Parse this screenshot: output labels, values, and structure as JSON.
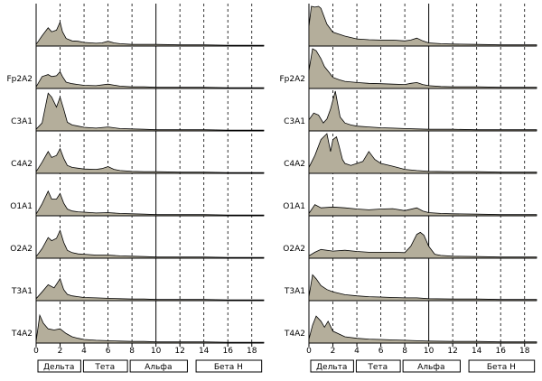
{
  "chart_data": [
    {
      "type": "area",
      "title": "",
      "xlabel": "",
      "ylabel": "",
      "xlim": [
        0,
        19
      ],
      "ylim": [
        0,
        1
      ],
      "grid": true,
      "legend": "none",
      "x_ticks": [
        0,
        2,
        4,
        6,
        8,
        10,
        12,
        14,
        16,
        18
      ],
      "tick_labels": [
        "0",
        "2",
        "4",
        "6",
        "8",
        "10",
        "12",
        "14",
        "16",
        "18"
      ],
      "bands": [
        {
          "name": "Дельта",
          "range": [
            0,
            3.8
          ]
        },
        {
          "name": "Тета",
          "range": [
            3.8,
            7.7
          ]
        },
        {
          "name": "Альфа",
          "range": [
            7.7,
            12.7
          ]
        },
        {
          "name": "Бета Н",
          "range": [
            13.2,
            18.9
          ]
        }
      ],
      "series": [
        {
          "name": "",
          "x": [
            0,
            0.5,
            1,
            1.3,
            1.7,
            2,
            2.2,
            2.5,
            3,
            3.5,
            4,
            5,
            5.5,
            6,
            6.5,
            7,
            8,
            9,
            10,
            12,
            14,
            16,
            18,
            19
          ],
          "values": [
            0.04,
            0.26,
            0.46,
            0.36,
            0.4,
            0.6,
            0.36,
            0.19,
            0.13,
            0.12,
            0.09,
            0.07,
            0.08,
            0.12,
            0.08,
            0.06,
            0.04,
            0.04,
            0.04,
            0.03,
            0.03,
            0.02,
            0.02,
            0.02
          ]
        },
        {
          "name": "Fp2A2",
          "x": [
            0,
            0.5,
            1,
            1.3,
            1.7,
            2,
            2.2,
            2.5,
            3,
            3.5,
            4,
            5,
            6,
            7,
            8,
            9,
            10,
            12,
            14,
            16,
            18,
            19
          ],
          "values": [
            0.04,
            0.3,
            0.35,
            0.3,
            0.32,
            0.42,
            0.3,
            0.16,
            0.12,
            0.1,
            0.08,
            0.07,
            0.11,
            0.06,
            0.04,
            0.04,
            0.03,
            0.03,
            0.03,
            0.02,
            0.02,
            0.02
          ]
        },
        {
          "name": "C3A1",
          "x": [
            0,
            0.5,
            1,
            1.3,
            1.7,
            2,
            2.3,
            2.6,
            3,
            3.5,
            4,
            5,
            6,
            7,
            8,
            9,
            10,
            12,
            14,
            16,
            18,
            19
          ],
          "values": [
            0.04,
            0.2,
            0.95,
            0.85,
            0.6,
            0.85,
            0.55,
            0.22,
            0.15,
            0.12,
            0.09,
            0.07,
            0.1,
            0.06,
            0.05,
            0.04,
            0.03,
            0.03,
            0.03,
            0.02,
            0.02,
            0.02
          ]
        },
        {
          "name": "C4A2",
          "x": [
            0,
            0.5,
            1,
            1.3,
            1.7,
            2,
            2.3,
            2.6,
            3,
            3.5,
            4,
            5,
            5.5,
            6,
            6.5,
            7,
            8,
            9,
            10,
            12,
            14,
            16,
            18,
            19
          ],
          "values": [
            0.04,
            0.28,
            0.55,
            0.4,
            0.45,
            0.62,
            0.38,
            0.2,
            0.15,
            0.13,
            0.11,
            0.1,
            0.12,
            0.17,
            0.1,
            0.07,
            0.05,
            0.04,
            0.04,
            0.03,
            0.03,
            0.02,
            0.02,
            0.02
          ]
        },
        {
          "name": "O1A1",
          "x": [
            0,
            0.5,
            1,
            1.3,
            1.7,
            2,
            2.3,
            2.6,
            3,
            3.5,
            4,
            5,
            6,
            7,
            8,
            9,
            10,
            12,
            14,
            16,
            18,
            19
          ],
          "values": [
            0.04,
            0.3,
            0.62,
            0.42,
            0.42,
            0.56,
            0.32,
            0.17,
            0.12,
            0.1,
            0.09,
            0.07,
            0.08,
            0.06,
            0.05,
            0.04,
            0.03,
            0.03,
            0.03,
            0.02,
            0.02,
            0.02
          ]
        },
        {
          "name": "O2A2",
          "x": [
            0,
            0.5,
            1,
            1.3,
            1.7,
            2,
            2.3,
            2.6,
            3,
            3.5,
            4,
            5,
            6,
            7,
            8,
            9,
            10,
            12,
            14,
            16,
            18,
            19
          ],
          "values": [
            0.04,
            0.24,
            0.52,
            0.44,
            0.5,
            0.7,
            0.4,
            0.2,
            0.14,
            0.11,
            0.1,
            0.08,
            0.08,
            0.06,
            0.05,
            0.04,
            0.03,
            0.03,
            0.03,
            0.02,
            0.02,
            0.02
          ]
        },
        {
          "name": "T3A1",
          "x": [
            0,
            0.5,
            1,
            1.5,
            2,
            2.3,
            2.6,
            3,
            3.5,
            4,
            5,
            6,
            7,
            8,
            9,
            10,
            12,
            14,
            16,
            18,
            19
          ],
          "values": [
            0.05,
            0.22,
            0.4,
            0.32,
            0.55,
            0.28,
            0.16,
            0.12,
            0.1,
            0.08,
            0.07,
            0.06,
            0.05,
            0.04,
            0.04,
            0.03,
            0.03,
            0.03,
            0.02,
            0.02,
            0.02
          ]
        },
        {
          "name": "T4A2",
          "x": [
            0,
            0.3,
            0.6,
            1,
            1.5,
            2,
            2.5,
            3,
            3.5,
            4,
            5,
            6,
            7,
            8,
            9,
            10,
            12,
            14,
            16,
            18,
            19
          ],
          "values": [
            0.05,
            0.7,
            0.5,
            0.36,
            0.33,
            0.36,
            0.24,
            0.16,
            0.12,
            0.09,
            0.07,
            0.06,
            0.05,
            0.04,
            0.04,
            0.03,
            0.03,
            0.03,
            0.02,
            0.02,
            0.02
          ]
        }
      ]
    },
    {
      "type": "area",
      "title": "",
      "xlabel": "",
      "ylabel": "",
      "xlim": [
        0,
        19
      ],
      "ylim": [
        0,
        1
      ],
      "grid": true,
      "legend": "none",
      "x_ticks": [
        0,
        2,
        4,
        6,
        8,
        10,
        12,
        14,
        16,
        18
      ],
      "tick_labels": [
        "0",
        "2",
        "4",
        "6",
        "8",
        "10",
        "12",
        "14",
        "16",
        "18"
      ],
      "bands": [
        {
          "name": "Дельта",
          "range": [
            0,
            3.8
          ]
        },
        {
          "name": "Тета",
          "range": [
            3.8,
            7.7
          ]
        },
        {
          "name": "Альфа",
          "range": [
            7.7,
            12.7
          ]
        },
        {
          "name": "Бета Н",
          "range": [
            13.2,
            18.9
          ]
        }
      ],
      "series": [
        {
          "name": "",
          "x": [
            0,
            0.2,
            0.5,
            0.8,
            1,
            1.5,
            2,
            3,
            4,
            5,
            6,
            7,
            8,
            8.5,
            9,
            9.5,
            10,
            11,
            12,
            14,
            16,
            18,
            19
          ],
          "values": [
            0.5,
            1,
            0.98,
            1,
            0.95,
            0.55,
            0.35,
            0.25,
            0.18,
            0.16,
            0.15,
            0.15,
            0.13,
            0.15,
            0.2,
            0.13,
            0.08,
            0.06,
            0.05,
            0.04,
            0.03,
            0.03,
            0.03
          ]
        },
        {
          "name": "Fp2A2",
          "x": [
            0,
            0.3,
            0.6,
            1,
            1.3,
            1.7,
            2,
            2.5,
            3,
            4,
            5,
            6,
            7,
            8,
            8.5,
            9,
            9.5,
            10,
            11,
            12,
            14,
            16,
            18,
            19
          ],
          "values": [
            0.45,
            1,
            0.95,
            0.75,
            0.55,
            0.4,
            0.28,
            0.22,
            0.18,
            0.15,
            0.13,
            0.12,
            0.11,
            0.1,
            0.13,
            0.15,
            0.1,
            0.07,
            0.05,
            0.04,
            0.04,
            0.03,
            0.03,
            0.03
          ]
        },
        {
          "name": "C3A1",
          "x": [
            0,
            0.4,
            0.8,
            1.2,
            1.5,
            1.8,
            2.2,
            2.6,
            3,
            3.5,
            4,
            5,
            6,
            7,
            8,
            9,
            10,
            12,
            14,
            16,
            18,
            19
          ],
          "values": [
            0.28,
            0.45,
            0.4,
            0.2,
            0.3,
            0.55,
            1,
            0.35,
            0.2,
            0.15,
            0.12,
            0.1,
            0.08,
            0.07,
            0.06,
            0.05,
            0.04,
            0.04,
            0.03,
            0.03,
            0.03,
            0.03
          ]
        },
        {
          "name": "C4A2",
          "x": [
            0,
            0.5,
            1,
            1.5,
            1.8,
            2,
            2.3,
            2.5,
            2.8,
            3,
            3.5,
            4,
            4.5,
            5,
            5.5,
            6,
            7,
            8,
            9,
            10,
            12,
            14,
            16,
            18,
            19
          ],
          "values": [
            0.15,
            0.45,
            0.85,
            1,
            0.55,
            0.85,
            0.92,
            0.7,
            0.35,
            0.25,
            0.2,
            0.25,
            0.3,
            0.55,
            0.35,
            0.25,
            0.18,
            0.1,
            0.07,
            0.05,
            0.04,
            0.04,
            0.03,
            0.03,
            0.03
          ]
        },
        {
          "name": "O1A1",
          "x": [
            0,
            0.5,
            1,
            2,
            3,
            4,
            5,
            6,
            7,
            8,
            9,
            9.5,
            10,
            11,
            12,
            14,
            16,
            18,
            19
          ],
          "values": [
            0.06,
            0.28,
            0.2,
            0.22,
            0.2,
            0.17,
            0.15,
            0.17,
            0.18,
            0.13,
            0.2,
            0.12,
            0.08,
            0.06,
            0.05,
            0.04,
            0.03,
            0.03,
            0.03
          ]
        },
        {
          "name": "O2A2",
          "x": [
            0,
            0.5,
            1,
            2,
            3,
            4,
            5,
            6,
            7,
            8,
            8.5,
            9,
            9.3,
            9.6,
            10,
            10.5,
            11,
            12,
            14,
            16,
            18,
            19
          ],
          "values": [
            0.06,
            0.15,
            0.22,
            0.18,
            0.2,
            0.17,
            0.15,
            0.15,
            0.15,
            0.14,
            0.3,
            0.6,
            0.65,
            0.58,
            0.3,
            0.1,
            0.07,
            0.05,
            0.04,
            0.03,
            0.03,
            0.03
          ]
        },
        {
          "name": "T3A1",
          "x": [
            0,
            0.3,
            0.6,
            1,
            1.5,
            2,
            3,
            4,
            5,
            6,
            7,
            8,
            9,
            10,
            12,
            14,
            16,
            18,
            19
          ],
          "values": [
            0.1,
            0.65,
            0.55,
            0.38,
            0.28,
            0.22,
            0.15,
            0.12,
            0.1,
            0.09,
            0.08,
            0.07,
            0.07,
            0.05,
            0.04,
            0.04,
            0.03,
            0.03,
            0.03
          ]
        },
        {
          "name": "T4A2",
          "x": [
            0,
            0.3,
            0.6,
            1,
            1.3,
            1.6,
            2,
            3,
            4,
            5,
            6,
            7,
            8,
            9,
            10,
            12,
            14,
            16,
            18,
            19
          ],
          "values": [
            0.1,
            0.45,
            0.68,
            0.55,
            0.4,
            0.55,
            0.3,
            0.16,
            0.12,
            0.1,
            0.09,
            0.08,
            0.07,
            0.06,
            0.05,
            0.04,
            0.04,
            0.03,
            0.03,
            0.03
          ]
        }
      ]
    }
  ]
}
